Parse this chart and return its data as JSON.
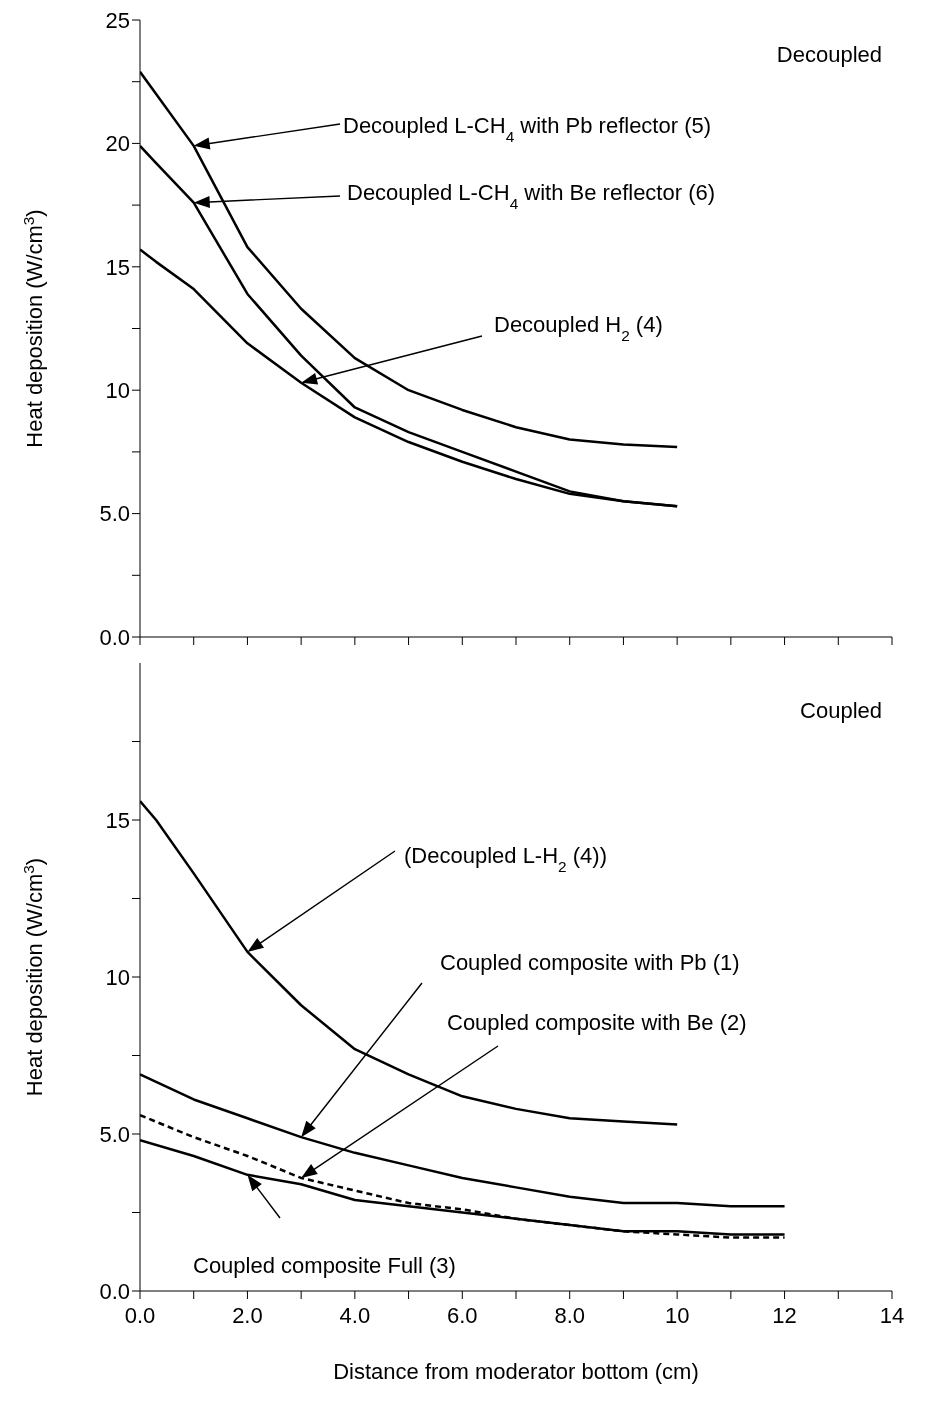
{
  "chart_data": [
    {
      "type": "line",
      "ylabel": "Heat deposition (W/cm$^{3}$)",
      "annotations": [
        "Decoupled",
        "Decoupled L-CH$_{4}$ with Pb reflector (5)",
        "Decoupled L-CH$_{4}$ with Be reflector (6)",
        "Decoupled H$_{2}$ (4)"
      ],
      "xlim": [
        0,
        14
      ],
      "xticks": [
        {
          "value": 0,
          "label": null
        },
        {
          "value": 1,
          "label": null
        },
        {
          "value": 2,
          "label": null
        },
        {
          "value": 3,
          "label": null
        },
        {
          "value": 4,
          "label": null
        },
        {
          "value": 5,
          "label": null
        },
        {
          "value": 6,
          "label": null
        },
        {
          "value": 7,
          "label": null
        },
        {
          "value": 8,
          "label": null
        },
        {
          "value": 9,
          "label": null
        },
        {
          "value": 10,
          "label": null
        },
        {
          "value": 11,
          "label": null
        },
        {
          "value": 12,
          "label": null
        },
        {
          "value": 13,
          "label": null
        },
        {
          "value": 14,
          "label": null
        }
      ],
      "ylim": [
        0,
        25
      ],
      "yticks": [
        {
          "value": 0,
          "label": "0.0"
        },
        {
          "value": 2.5,
          "label": null
        },
        {
          "value": 5,
          "label": "5.0"
        },
        {
          "value": 7.5,
          "label": null
        },
        10,
        {
          "value": 12.5,
          "label": null
        },
        15,
        {
          "value": 17.5,
          "label": null
        },
        20,
        {
          "value": 22.5,
          "label": null
        },
        25
      ],
      "tick_labels": "y",
      "marker": "none",
      "line_style": "solid",
      "series": [
        {
          "color": "#000000",
          "x": [
            0,
            0.3,
            1,
            2,
            3,
            4,
            5,
            6,
            7,
            8,
            9,
            10
          ],
          "values": [
            22.9,
            22.0,
            19.9,
            15.8,
            13.3,
            11.3,
            10.0,
            9.2,
            8.5,
            8.0,
            7.8,
            7.7
          ]
        },
        {
          "color": "#000000",
          "x": [
            0,
            0.3,
            1,
            2,
            3,
            4,
            5,
            6,
            7,
            8,
            9,
            10
          ],
          "values": [
            19.9,
            19.2,
            17.6,
            13.9,
            11.4,
            9.3,
            8.3,
            7.5,
            6.7,
            5.9,
            5.5,
            5.3
          ]
        },
        {
          "color": "#000000",
          "x": [
            0,
            0.3,
            1,
            2,
            3,
            4,
            5,
            6,
            7,
            8,
            9,
            10
          ],
          "values": [
            15.7,
            15.2,
            14.1,
            11.9,
            10.3,
            8.9,
            7.9,
            7.1,
            6.4,
            5.8,
            5.5,
            5.3
          ]
        }
      ]
    },
    {
      "type": "line",
      "ylabel": "Heat deposition (W/cm$^{3}$)",
      "xlabel": "Distance from moderator bottom (cm)",
      "annotations": [
        "Coupled",
        "(Decoupled L-H$_{2}$ (4))",
        "Coupled composite with Pb (1)",
        "Coupled composite with Be (2)",
        "Coupled composite Full (3)"
      ],
      "xlim": [
        0,
        14
      ],
      "xticks": [
        {
          "value": 0,
          "label": "0.0"
        },
        {
          "value": 1,
          "label": null
        },
        {
          "value": 2,
          "label": "2.0"
        },
        {
          "value": 3,
          "label": null
        },
        {
          "value": 4,
          "label": "4.0"
        },
        {
          "value": 5,
          "label": null
        },
        {
          "value": 6,
          "label": "6.0"
        },
        {
          "value": 7,
          "label": null
        },
        {
          "value": 8,
          "label": "8.0"
        },
        {
          "value": 9,
          "label": null
        },
        10,
        {
          "value": 11,
          "label": null
        },
        12,
        {
          "value": 13,
          "label": null
        },
        14
      ],
      "ylim": [
        0,
        20
      ],
      "yticks": [
        {
          "value": 0,
          "label": "0.0"
        },
        {
          "value": 2.5,
          "label": null
        },
        {
          "value": 5,
          "label": "5.0"
        },
        {
          "value": 7.5,
          "label": null
        },
        10,
        {
          "value": 12.5,
          "label": null
        },
        15,
        {
          "value": 17.5,
          "label": null
        }
      ],
      "marker": "none",
      "line_style": "solid",
      "series": [
        {
          "color": "#000000",
          "x": [
            0,
            0.3,
            1,
            2,
            3,
            4,
            5,
            6,
            7,
            8,
            9,
            10
          ],
          "values": [
            15.6,
            15.0,
            13.3,
            10.8,
            9.1,
            7.7,
            6.9,
            6.2,
            5.8,
            5.5,
            5.4,
            5.3
          ]
        },
        {
          "color": "#000000",
          "x": [
            0,
            1,
            2,
            3,
            4,
            5,
            6,
            7,
            8,
            9,
            10,
            11,
            12
          ],
          "values": [
            6.9,
            6.1,
            5.5,
            4.9,
            4.4,
            4.0,
            3.6,
            3.3,
            3.0,
            2.8,
            2.8,
            2.7,
            2.7
          ]
        },
        {
          "color": "#000000",
          "line_style": "dashed",
          "x": [
            0,
            1,
            2,
            3,
            4,
            5,
            6,
            7,
            8,
            9,
            10,
            11,
            12
          ],
          "values": [
            5.6,
            4.9,
            4.3,
            3.6,
            3.2,
            2.8,
            2.6,
            2.3,
            2.1,
            1.9,
            1.8,
            1.7,
            1.7
          ]
        },
        {
          "color": "#000000",
          "x": [
            0,
            1,
            2,
            3,
            4,
            5,
            6,
            7,
            8,
            9,
            10,
            11,
            12
          ],
          "values": [
            4.8,
            4.3,
            3.7,
            3.4,
            2.9,
            2.7,
            2.5,
            2.3,
            2.1,
            1.9,
            1.9,
            1.8,
            1.8
          ]
        }
      ]
    }
  ]
}
